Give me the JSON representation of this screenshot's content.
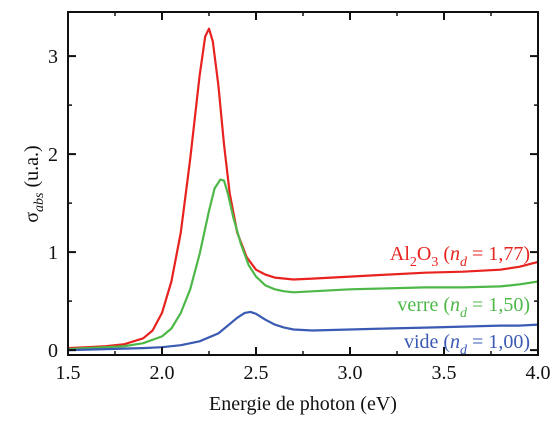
{
  "chart_data": {
    "type": "line",
    "xlabel": "Energie de photon (eV)",
    "ylabel": {
      "main": "σ",
      "sub": "abs",
      "rest": " (u.a.)"
    },
    "xlim": [
      1.5,
      4.0
    ],
    "ylim": [
      -0.05,
      3.45
    ],
    "x_ticks": [
      "1.5",
      "2.0",
      "2.5",
      "3.0",
      "3.5",
      "4.0"
    ],
    "y_ticks": [
      "0",
      "1",
      "2",
      "3"
    ],
    "grid": false,
    "legend": "inline labels at right end of each curve",
    "series": [
      {
        "name": "Al2O3 (nd = 1,77)",
        "label_parts": {
          "pre": "Al",
          "sub1": "2",
          "mid": "O",
          "sub2": "3",
          "open": " (",
          "n": "n",
          "nsub": "d",
          "post": " = 1,77)"
        },
        "color": "#e8221f",
        "x": [
          1.5,
          1.6,
          1.7,
          1.8,
          1.9,
          1.95,
          2.0,
          2.05,
          2.1,
          2.15,
          2.2,
          2.23,
          2.25,
          2.27,
          2.3,
          2.33,
          2.36,
          2.4,
          2.45,
          2.5,
          2.55,
          2.6,
          2.7,
          2.8,
          3.0,
          3.2,
          3.4,
          3.6,
          3.8,
          3.9,
          4.0
        ],
        "values": [
          0.02,
          0.03,
          0.04,
          0.06,
          0.12,
          0.2,
          0.38,
          0.7,
          1.2,
          1.95,
          2.8,
          3.2,
          3.28,
          3.15,
          2.7,
          2.1,
          1.6,
          1.2,
          0.95,
          0.82,
          0.77,
          0.74,
          0.72,
          0.73,
          0.75,
          0.77,
          0.79,
          0.8,
          0.82,
          0.85,
          0.9
        ]
      },
      {
        "name": "verre (nd = 1,50)",
        "label_parts": {
          "pre": "verre (",
          "n": "n",
          "nsub": "d",
          "post": " = 1,50)"
        },
        "color": "#4db848",
        "x": [
          1.5,
          1.6,
          1.7,
          1.8,
          1.9,
          2.0,
          2.05,
          2.1,
          2.15,
          2.2,
          2.25,
          2.28,
          2.31,
          2.33,
          2.35,
          2.38,
          2.42,
          2.46,
          2.5,
          2.55,
          2.6,
          2.65,
          2.7,
          2.8,
          3.0,
          3.2,
          3.4,
          3.6,
          3.8,
          3.9,
          4.0
        ],
        "values": [
          0.01,
          0.02,
          0.03,
          0.04,
          0.07,
          0.14,
          0.22,
          0.38,
          0.62,
          0.98,
          1.42,
          1.65,
          1.74,
          1.73,
          1.6,
          1.35,
          1.08,
          0.87,
          0.75,
          0.66,
          0.62,
          0.6,
          0.59,
          0.6,
          0.62,
          0.63,
          0.64,
          0.64,
          0.65,
          0.67,
          0.7
        ]
      },
      {
        "name": "vide (nd = 1,00)",
        "label_parts": {
          "pre": "vide (",
          "n": "n",
          "nsub": "d",
          "post": " = 1,00)"
        },
        "color": "#3a5ab3",
        "x": [
          1.5,
          1.7,
          1.9,
          2.0,
          2.1,
          2.2,
          2.3,
          2.35,
          2.4,
          2.44,
          2.47,
          2.5,
          2.55,
          2.6,
          2.65,
          2.7,
          2.8,
          3.0,
          3.2,
          3.4,
          3.6,
          3.8,
          3.9,
          4.0
        ],
        "values": [
          0.0,
          0.01,
          0.02,
          0.03,
          0.05,
          0.09,
          0.17,
          0.25,
          0.33,
          0.38,
          0.39,
          0.37,
          0.31,
          0.26,
          0.23,
          0.21,
          0.2,
          0.21,
          0.22,
          0.23,
          0.24,
          0.25,
          0.25,
          0.26
        ]
      }
    ]
  }
}
